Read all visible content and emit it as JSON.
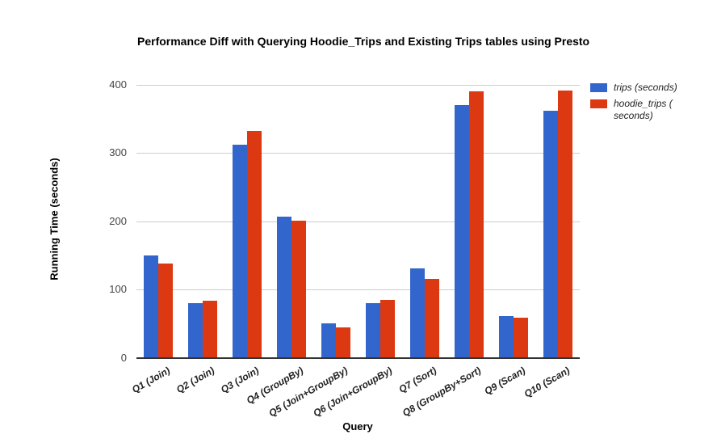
{
  "title": "Performance Diff with Querying Hoodie_Trips and Existing Trips tables using Presto",
  "axes": {
    "x_title": "Query",
    "y_title": "Running Time (seconds)",
    "y_tick_labels": [
      "0",
      "100",
      "200",
      "300",
      "400"
    ]
  },
  "legend": {
    "items": [
      {
        "label": "trips (seconds)",
        "color": "#3366cc"
      },
      {
        "label": "hoodie_trips (\nseconds)",
        "color": "#dc3912"
      }
    ]
  },
  "colors": {
    "series_blue": "#3366cc",
    "series_red": "#dc3912",
    "gridline": "#cccccc",
    "axis_line": "#333333",
    "tick_label": "#444444"
  },
  "chart_data": {
    "type": "bar",
    "title": "Performance Diff with Querying Hoodie_Trips and Existing Trips tables using Presto",
    "xlabel": "Query",
    "ylabel": "Running Time (seconds)",
    "categories": [
      "Q1 (Join)",
      "Q2 (Join)",
      "Q3 (Join)",
      "Q4 (GroupBy)",
      "Q5 (Join+GroupBy)",
      "Q6 (Join+GroupBy)",
      "Q7 (Sort)",
      "Q8 (GroupBy+Sort)",
      "Q9 (Scan)",
      "Q10 (Scan)"
    ],
    "series": [
      {
        "name": "trips (seconds)",
        "color": "#3366cc",
        "values": [
          150,
          81,
          313,
          207,
          51,
          80,
          131,
          371,
          61,
          362
        ]
      },
      {
        "name": "hoodie_trips (seconds)",
        "color": "#dc3912",
        "values": [
          138,
          84,
          332,
          201,
          45,
          85,
          116,
          390,
          59,
          392
        ]
      }
    ],
    "ylim": [
      0,
      400
    ],
    "yticks": [
      0,
      100,
      200,
      300,
      400
    ],
    "grid": true,
    "legend_position": "right"
  }
}
